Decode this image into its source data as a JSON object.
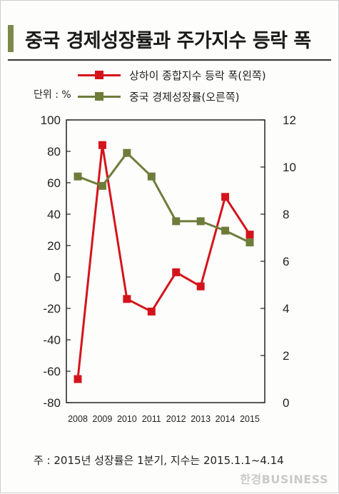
{
  "title": "중국 경제성장률과 주가지수 등락 폭",
  "unit_label": "단위 : %",
  "note": "주 : 2015년 성장률은 1분기, 지수는 2015.1.1~4.14",
  "watermark": "한경BUSINESS",
  "colors": {
    "red_series": "#d4141c",
    "green_series": "#6e7c3a",
    "accent_bar": "#7b8a4a"
  },
  "chart_data": {
    "type": "line",
    "categories": [
      "2008",
      "2009",
      "2010",
      "2011",
      "2012",
      "2013",
      "2014",
      "2015"
    ],
    "series": [
      {
        "name": "상하이 종합지수 등락 폭(왼쪽)",
        "axis": "left",
        "values": [
          -65,
          84,
          -14,
          -22,
          3,
          -6,
          51,
          27
        ]
      },
      {
        "name": "중국 경제성장률(오른쪽)",
        "axis": "right",
        "values": [
          9.6,
          9.2,
          10.6,
          9.6,
          7.7,
          7.7,
          7.3,
          6.8
        ]
      }
    ],
    "left_axis": {
      "ylim": [
        -80,
        100
      ],
      "ticks": [
        "100",
        "80",
        "60",
        "40",
        "20",
        "0",
        "-20",
        "-40",
        "-60",
        "-80"
      ]
    },
    "right_axis": {
      "ylim": [
        0,
        12
      ],
      "ticks": [
        "12",
        "10",
        "8",
        "6",
        "4",
        "2",
        "0"
      ]
    },
    "grid": true,
    "legend_position": "top"
  }
}
